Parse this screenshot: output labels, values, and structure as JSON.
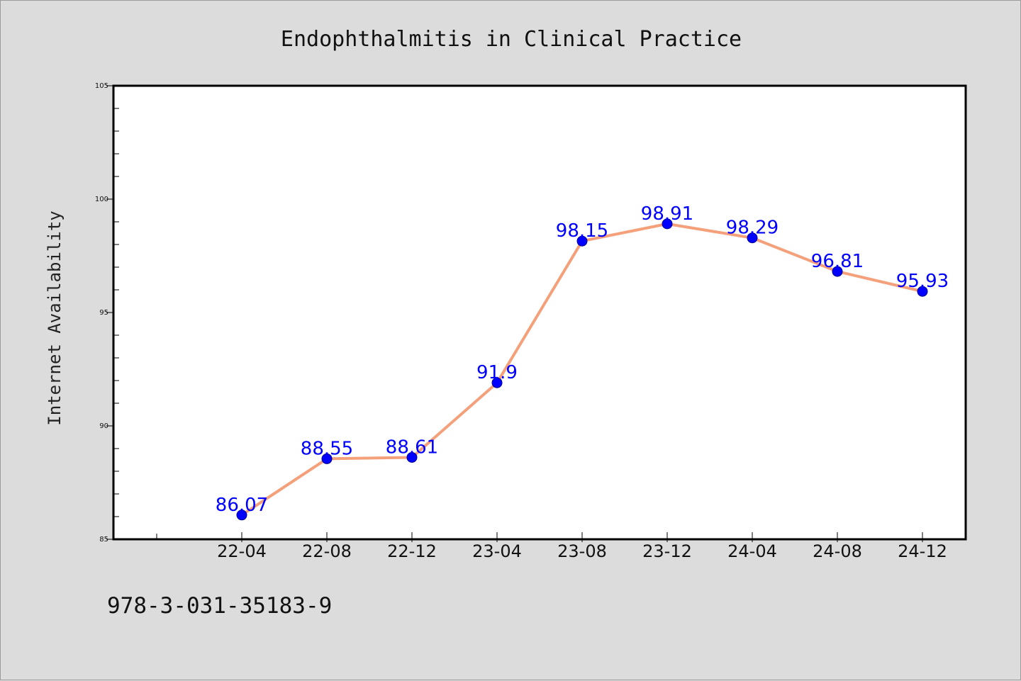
{
  "footer": {
    "isbn": "978-3-031-35183-9"
  },
  "colors": {
    "background": "#dcdcdc",
    "plot_background": "#ffffff",
    "line": "#f4a07a",
    "marker": "#0000ff",
    "data_label": "#0000ff"
  },
  "chart_data": {
    "type": "line",
    "title": "Endophthalmitis in Clinical Practice",
    "xlabel": "",
    "ylabel": "Internet Availability",
    "categories": [
      "22-04",
      "22-08",
      "22-12",
      "23-04",
      "23-08",
      "23-12",
      "24-04",
      "24-08",
      "24-12"
    ],
    "series": [
      {
        "values": [
          86.07,
          88.55,
          88.61,
          91.9,
          98.15,
          98.91,
          98.29,
          96.81,
          95.93
        ],
        "data_labels": [
          "86.07",
          "88.55",
          "88.61",
          "91.9",
          "98.15",
          "98.91",
          "98.29",
          "96.81",
          "95.93"
        ]
      }
    ],
    "ylim": [
      85,
      105
    ],
    "yticks": [
      "85",
      "90",
      "95",
      "100",
      "105"
    ],
    "grid": false,
    "legend": "none"
  }
}
